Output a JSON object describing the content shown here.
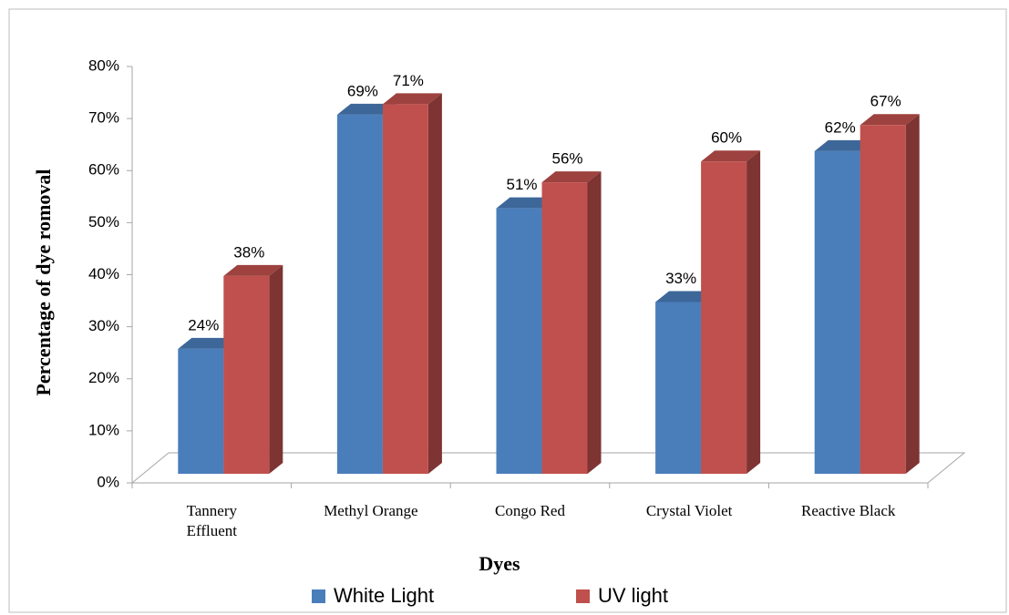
{
  "chart_data": {
    "type": "bar3d",
    "x_label": "Dyes",
    "y_label": "Percentage of dye romoval",
    "categories": [
      "Tannery\nEffluent",
      "Methyl Orange",
      "Congo Red",
      "Crystal Violet",
      "Reactive Black"
    ],
    "series": [
      {
        "name": "White Light",
        "color": "#4a7ebb",
        "values": [
          24,
          69,
          51,
          33,
          62
        ],
        "value_labels": [
          "24%",
          "69%",
          "51%",
          "33%",
          "62%"
        ]
      },
      {
        "name": "UV light",
        "color": "#c0504d",
        "values": [
          38,
          71,
          56,
          60,
          67
        ],
        "value_labels": [
          "38%",
          "71%",
          "56%",
          "60%",
          "67%"
        ]
      }
    ],
    "ylim": [
      0,
      80
    ],
    "yticks": [
      {
        "value": 0,
        "label": "0%"
      },
      {
        "value": 10,
        "label": "10%"
      },
      {
        "value": 20,
        "label": "20%"
      },
      {
        "value": 30,
        "label": "30%"
      },
      {
        "value": 40,
        "label": "40%"
      },
      {
        "value": 50,
        "label": "50%"
      },
      {
        "value": 60,
        "label": "60%"
      },
      {
        "value": 70,
        "label": "70%"
      },
      {
        "value": 80,
        "label": "80%"
      }
    ],
    "legend": "bottom"
  }
}
